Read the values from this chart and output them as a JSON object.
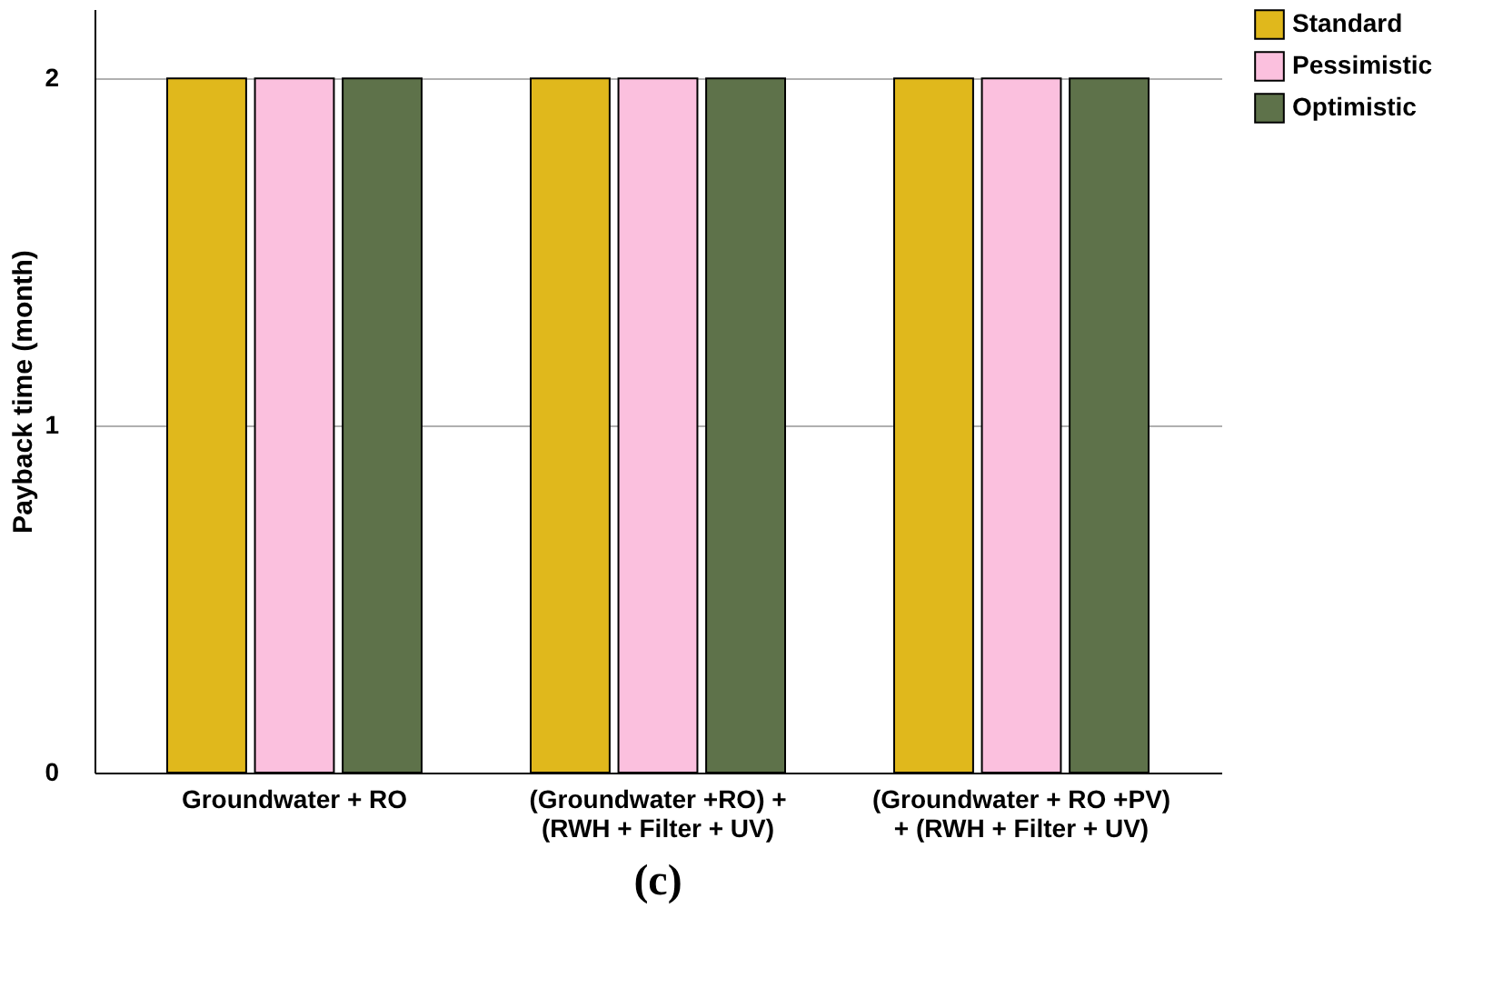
{
  "chart_data": {
    "type": "bar",
    "title": "(c)",
    "ylabel": "Payback time (month)",
    "categories": [
      "Groundwater + RO",
      "(Groundwater +RO) + (RWH + Filter + UV)",
      "(Groundwater + RO +PV) + (RWH + Filter + UV)"
    ],
    "series": [
      {
        "name": "Standard",
        "color": "#e0b81c",
        "values": [
          2,
          2,
          2
        ]
      },
      {
        "name": "Pessimistic",
        "color": "#fbc0de",
        "values": [
          2,
          2,
          2
        ]
      },
      {
        "name": "Optimistic",
        "color": "#5e724a",
        "values": [
          2,
          2,
          2
        ]
      }
    ],
    "ylim": [
      0,
      2.2
    ],
    "yticks": [
      0,
      1,
      2
    ],
    "grid": "y",
    "legend": "top right"
  }
}
